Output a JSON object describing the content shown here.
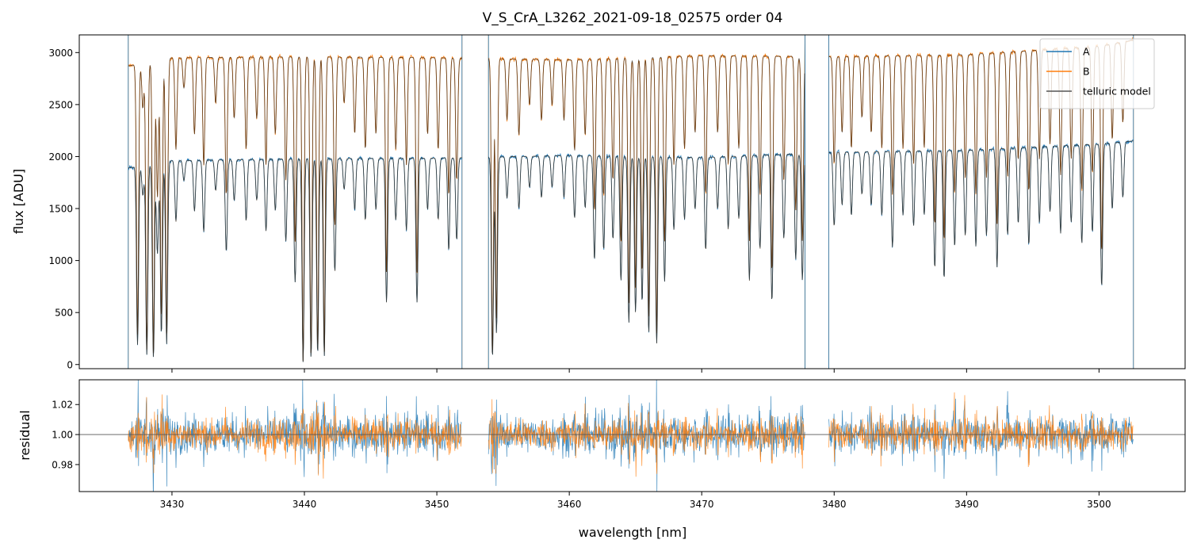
{
  "chart_data": [
    {
      "type": "line",
      "title": "V_S_CrA_L3262_2021-09-18_02575  order 04",
      "xlabel": "",
      "ylabel": "flux [ADU]",
      "xlim": [
        3423.0,
        3506.5
      ],
      "ylim": [
        -40,
        3170
      ],
      "yticks": [
        0,
        500,
        1000,
        1500,
        2000,
        2500,
        3000
      ],
      "xticks": [
        3430,
        3440,
        3450,
        3460,
        3470,
        3480,
        3490,
        3500
      ],
      "legend_position": "top-right",
      "segments": [
        [
          3426.7,
          3451.9
        ],
        [
          3453.9,
          3477.8
        ],
        [
          3479.6,
          3502.6
        ]
      ],
      "series": [
        {
          "name": "A",
          "color": "#1f77b4",
          "continuum": [
            [
              3426.7,
              1890
            ],
            [
              3430,
              1960
            ],
            [
              3440,
              1980
            ],
            [
              3450,
              1985
            ],
            [
              3460,
              2010
            ],
            [
              3470,
              1990
            ],
            [
              3480,
              2040
            ],
            [
              3490,
              2060
            ],
            [
              3500,
              2120
            ],
            [
              3502.6,
              2150
            ]
          ]
        },
        {
          "name": "B",
          "color": "#ff7f0e",
          "continuum": [
            [
              3426.7,
              2870
            ],
            [
              3430,
              2950
            ],
            [
              3440,
              2960
            ],
            [
              3450,
              2950
            ],
            [
              3460,
              2930
            ],
            [
              3470,
              2970
            ],
            [
              3480,
              2960
            ],
            [
              3490,
              2980
            ],
            [
              3500,
              3060
            ],
            [
              3502.6,
              3120
            ]
          ]
        },
        {
          "name": "telluric model",
          "color": "#555555"
        }
      ],
      "absorption_lines": [
        [
          3427.4,
          0.9
        ],
        [
          3427.8,
          0.15
        ],
        [
          3428.1,
          0.95
        ],
        [
          3428.6,
          0.97
        ],
        [
          3428.9,
          0.45
        ],
        [
          3429.2,
          0.85
        ],
        [
          3429.6,
          0.9
        ],
        [
          3430.3,
          0.3
        ],
        [
          3430.9,
          0.1
        ],
        [
          3431.7,
          0.25
        ],
        [
          3432.4,
          0.35
        ],
        [
          3433.3,
          0.15
        ],
        [
          3434.1,
          0.45
        ],
        [
          3434.7,
          0.2
        ],
        [
          3435.6,
          0.3
        ],
        [
          3436.4,
          0.2
        ],
        [
          3437.1,
          0.35
        ],
        [
          3437.8,
          0.25
        ],
        [
          3438.6,
          0.4
        ],
        [
          3439.3,
          0.6
        ],
        [
          3439.9,
          0.99
        ],
        [
          3440.5,
          0.97
        ],
        [
          3441.0,
          0.95
        ],
        [
          3441.5,
          0.96
        ],
        [
          3442.3,
          0.55
        ],
        [
          3443.0,
          0.15
        ],
        [
          3443.8,
          0.25
        ],
        [
          3444.6,
          0.3
        ],
        [
          3445.4,
          0.25
        ],
        [
          3446.2,
          0.7
        ],
        [
          3446.9,
          0.3
        ],
        [
          3447.7,
          0.35
        ],
        [
          3448.5,
          0.7
        ],
        [
          3449.3,
          0.25
        ],
        [
          3450.1,
          0.3
        ],
        [
          3450.9,
          0.45
        ],
        [
          3451.5,
          0.4
        ],
        [
          3454.2,
          0.97
        ],
        [
          3454.5,
          0.85
        ],
        [
          3455.3,
          0.2
        ],
        [
          3456.2,
          0.25
        ],
        [
          3457.0,
          0.15
        ],
        [
          3457.9,
          0.2
        ],
        [
          3458.7,
          0.15
        ],
        [
          3459.6,
          0.2
        ],
        [
          3460.4,
          0.3
        ],
        [
          3461.2,
          0.25
        ],
        [
          3461.9,
          0.5
        ],
        [
          3462.6,
          0.45
        ],
        [
          3463.3,
          0.4
        ],
        [
          3463.9,
          0.6
        ],
        [
          3464.5,
          0.8
        ],
        [
          3465.0,
          0.75
        ],
        [
          3465.5,
          0.7
        ],
        [
          3466.0,
          0.85
        ],
        [
          3466.6,
          0.9
        ],
        [
          3467.2,
          0.6
        ],
        [
          3467.9,
          0.35
        ],
        [
          3468.7,
          0.3
        ],
        [
          3469.5,
          0.25
        ],
        [
          3470.3,
          0.45
        ],
        [
          3471.2,
          0.25
        ],
        [
          3472.0,
          0.35
        ],
        [
          3472.8,
          0.3
        ],
        [
          3473.6,
          0.6
        ],
        [
          3474.4,
          0.45
        ],
        [
          3475.3,
          0.7
        ],
        [
          3476.2,
          0.4
        ],
        [
          3477.1,
          0.5
        ],
        [
          3477.6,
          0.6
        ],
        [
          3480.0,
          0.35
        ],
        [
          3480.6,
          0.25
        ],
        [
          3481.3,
          0.3
        ],
        [
          3482.1,
          0.2
        ],
        [
          3482.8,
          0.25
        ],
        [
          3483.6,
          0.3
        ],
        [
          3484.4,
          0.45
        ],
        [
          3485.2,
          0.3
        ],
        [
          3486.0,
          0.35
        ],
        [
          3486.8,
          0.3
        ],
        [
          3487.6,
          0.55
        ],
        [
          3488.3,
          0.6
        ],
        [
          3489.1,
          0.45
        ],
        [
          3489.9,
          0.4
        ],
        [
          3490.7,
          0.45
        ],
        [
          3491.5,
          0.4
        ],
        [
          3492.3,
          0.55
        ],
        [
          3493.1,
          0.4
        ],
        [
          3493.9,
          0.35
        ],
        [
          3494.7,
          0.45
        ],
        [
          3495.5,
          0.35
        ],
        [
          3496.3,
          0.3
        ],
        [
          3497.1,
          0.4
        ],
        [
          3497.9,
          0.35
        ],
        [
          3498.7,
          0.45
        ],
        [
          3499.5,
          0.4
        ],
        [
          3500.2,
          0.65
        ],
        [
          3501.0,
          0.3
        ],
        [
          3501.8,
          0.25
        ]
      ]
    },
    {
      "type": "line",
      "title": "",
      "xlabel": "wavelength [nm]",
      "ylabel": "residual",
      "xlim": [
        3423.0,
        3506.5
      ],
      "ylim": [
        0.962,
        1.0365
      ],
      "yticks": [
        0.98,
        1.0,
        1.02
      ],
      "ytick_labels": [
        "0.98",
        "1.00",
        "1.02"
      ],
      "xticks": [
        3430,
        3440,
        3450,
        3460,
        3470,
        3480,
        3490,
        3500
      ],
      "reference_line": 1.0,
      "series": [
        {
          "name": "A",
          "color": "#1f77b4",
          "center": 1.0,
          "scatter": 0.011
        },
        {
          "name": "B",
          "color": "#ff7f0e",
          "center": 1.0,
          "scatter": 0.009
        }
      ]
    }
  ]
}
